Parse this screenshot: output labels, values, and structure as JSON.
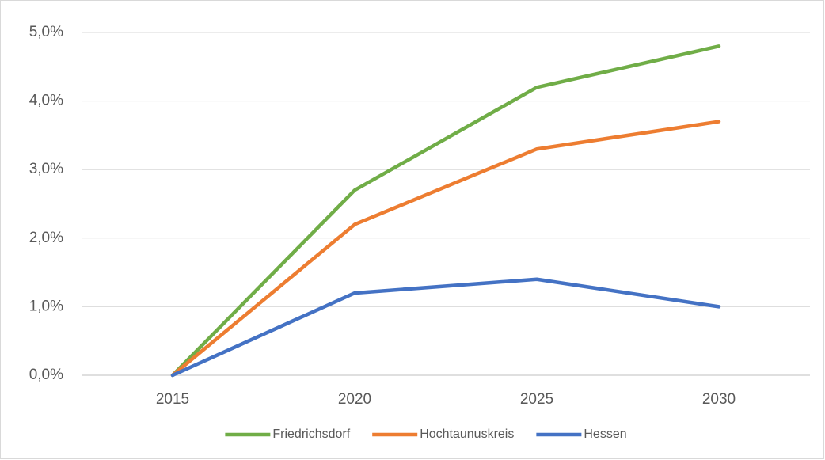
{
  "chart_data": {
    "type": "line",
    "categories": [
      "2015",
      "2020",
      "2025",
      "2030"
    ],
    "series": [
      {
        "name": "Friedrichsdorf",
        "color": "#70ad47",
        "values": [
          0,
          2.7,
          4.2,
          4.8
        ]
      },
      {
        "name": "Hochtaunuskreis",
        "color": "#ed7d31",
        "values": [
          0,
          2.2,
          3.3,
          3.7
        ]
      },
      {
        "name": "Hessen",
        "color": "#4472c4",
        "values": [
          0,
          1.2,
          1.4,
          1.0
        ]
      }
    ],
    "ylim": [
      0,
      5
    ],
    "yticks": [
      {
        "value": 0,
        "label": "0,0%"
      },
      {
        "value": 1,
        "label": "1,0%"
      },
      {
        "value": 2,
        "label": "2,0%"
      },
      {
        "value": 3,
        "label": "3,0%"
      },
      {
        "value": 4,
        "label": "4,0%"
      },
      {
        "value": 5,
        "label": "5,0%"
      }
    ],
    "grid": true,
    "legend": "bottom"
  }
}
